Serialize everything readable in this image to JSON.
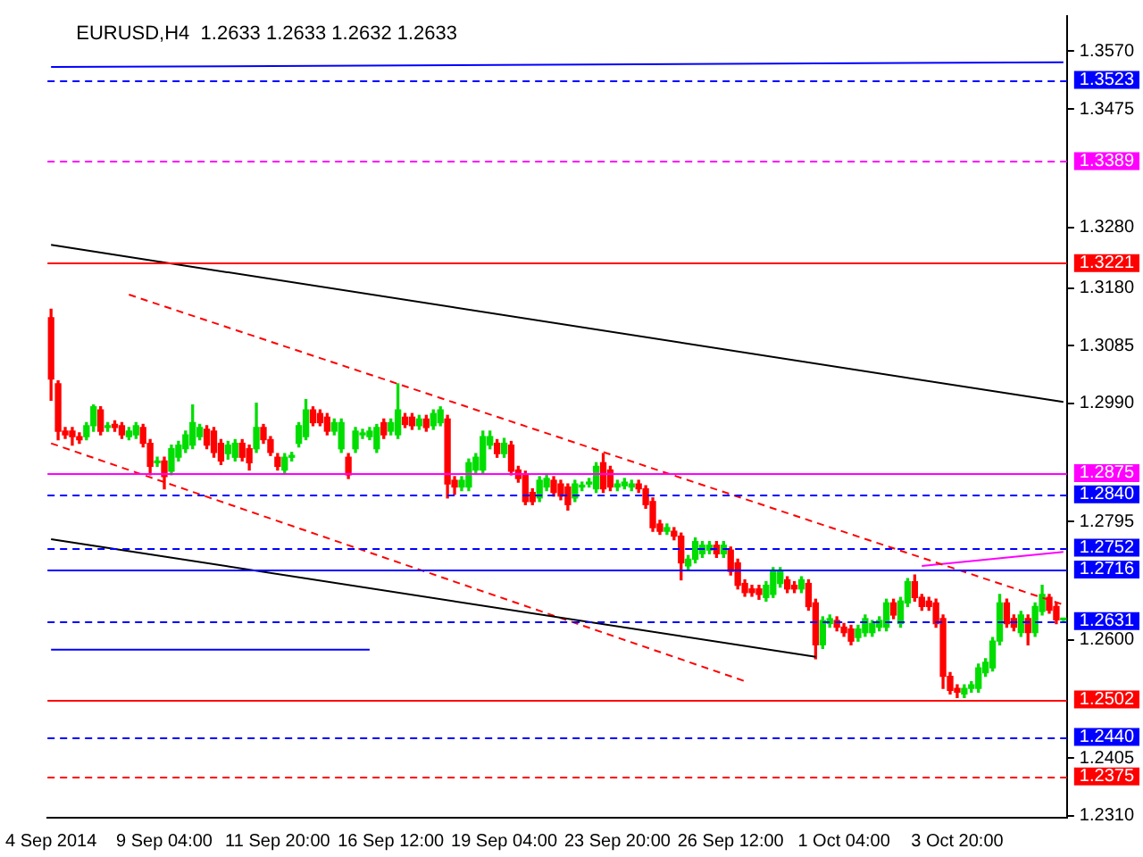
{
  "chart_data": {
    "type": "candlestick",
    "title": "EURUSD,H4  1.2633 1.2633 1.2632 1.2633",
    "categories": [
      "4 Sep 2014",
      null,
      null,
      null,
      null,
      null,
      null,
      null,
      null,
      null,
      null,
      null,
      null,
      null,
      null,
      null,
      "9 Sep 04:00",
      null,
      null,
      null,
      null,
      null,
      null,
      null,
      null,
      null,
      null,
      null,
      null,
      null,
      null,
      null,
      "11 Sep 20:00",
      null,
      null,
      null,
      null,
      null,
      null,
      null,
      null,
      null,
      null,
      null,
      null,
      null,
      null,
      null,
      "16 Sep 12:00",
      null,
      null,
      null,
      null,
      null,
      null,
      null,
      null,
      null,
      null,
      null,
      null,
      null,
      null,
      null,
      "19 Sep 04:00",
      null,
      null,
      null,
      null,
      null,
      null,
      null,
      null,
      null,
      null,
      null,
      null,
      null,
      null,
      null,
      "23 Sep 20:00",
      null,
      null,
      null,
      null,
      null,
      null,
      null,
      null,
      null,
      null,
      null,
      null,
      null,
      null,
      null,
      "26 Sep 12:00",
      null,
      null,
      null,
      null,
      null,
      null,
      null,
      null,
      null,
      null,
      null,
      null,
      null,
      null,
      null,
      "1 Oct 04:00",
      null,
      null,
      null,
      null,
      null,
      null,
      null,
      null,
      null,
      null,
      null,
      null,
      null,
      null,
      null,
      "3 Oct 20:00",
      null,
      null,
      null,
      null,
      null,
      null,
      null,
      null,
      null,
      null,
      null,
      null,
      null,
      null,
      null
    ],
    "ohlc": [
      [
        1.3131,
        1.3145,
        1.2995,
        1.303
      ],
      [
        1.3022,
        1.3027,
        1.293,
        1.2944
      ],
      [
        1.2944,
        1.295,
        1.2932,
        1.2938
      ],
      [
        1.2944,
        1.295,
        1.2921,
        1.2935
      ],
      [
        1.2935,
        1.2941,
        1.2924,
        1.293
      ],
      [
        1.2935,
        1.2958,
        1.293,
        1.2953
      ],
      [
        1.2953,
        1.2987,
        1.2944,
        1.2984
      ],
      [
        1.2979,
        1.2984,
        1.2938,
        1.2944
      ],
      [
        1.295,
        1.2958,
        1.2944,
        1.2953
      ],
      [
        1.2955,
        1.2961,
        1.2944,
        1.295
      ],
      [
        1.2953,
        1.2958,
        1.2932,
        1.2938
      ],
      [
        1.2935,
        1.295,
        1.293,
        1.2944
      ],
      [
        1.2938,
        1.2958,
        1.2932,
        1.2953
      ],
      [
        1.295,
        1.2955,
        1.2918,
        1.2924
      ],
      [
        1.2924,
        1.293,
        1.2872,
        1.2886
      ],
      [
        1.2892,
        1.2901,
        1.2886,
        1.2895
      ],
      [
        1.2895,
        1.2901,
        1.2849,
        1.2869
      ],
      [
        1.2878,
        1.2921,
        1.2872,
        1.2915
      ],
      [
        1.2901,
        1.2927,
        1.2895,
        1.2921
      ],
      [
        1.2915,
        1.2944,
        1.2909,
        1.2938
      ],
      [
        1.2921,
        1.2987,
        1.2915,
        1.2958
      ],
      [
        1.2935,
        1.2955,
        1.293,
        1.295
      ],
      [
        1.2947,
        1.2953,
        1.2915,
        1.2921
      ],
      [
        1.2944,
        1.295,
        1.2901,
        1.2909
      ],
      [
        1.2924,
        1.293,
        1.2889,
        1.2895
      ],
      [
        1.2907,
        1.2927,
        1.2898,
        1.2921
      ],
      [
        1.2901,
        1.293,
        1.2895,
        1.2924
      ],
      [
        1.2924,
        1.293,
        1.2895,
        1.2901
      ],
      [
        1.2915,
        1.2921,
        1.288,
        1.2892
      ],
      [
        1.2915,
        1.299,
        1.2909,
        1.295
      ],
      [
        1.295,
        1.2955,
        1.2924,
        1.293
      ],
      [
        1.293,
        1.2935,
        1.2904,
        1.2909
      ],
      [
        1.2901,
        1.2907,
        1.288,
        1.2886
      ],
      [
        1.288,
        1.2907,
        1.2875,
        1.2901
      ],
      [
        1.2901,
        1.2909,
        1.2895,
        1.2904
      ],
      [
        1.2924,
        1.2958,
        1.2918,
        1.2953
      ],
      [
        1.2935,
        1.2996,
        1.293,
        1.2979
      ],
      [
        1.2979,
        1.2984,
        1.2953,
        1.2958
      ],
      [
        1.2973,
        1.2979,
        1.2953,
        1.2958
      ],
      [
        1.2967,
        1.2973,
        1.2938,
        1.2944
      ],
      [
        1.2944,
        1.2964,
        1.2938,
        1.2958
      ],
      [
        1.2915,
        1.2964,
        1.2909,
        1.2958
      ],
      [
        1.2901,
        1.2907,
        1.2866,
        1.2872
      ],
      [
        1.2915,
        1.295,
        1.2909,
        1.2944
      ],
      [
        1.2938,
        1.2947,
        1.2932,
        1.2941
      ],
      [
        1.2935,
        1.295,
        1.293,
        1.2944
      ],
      [
        1.2915,
        1.2955,
        1.2909,
        1.295
      ],
      [
        1.2958,
        1.2964,
        1.2932,
        1.2938
      ],
      [
        1.2944,
        1.2964,
        1.2938,
        1.2958
      ],
      [
        1.2938,
        1.3022,
        1.2932,
        1.2979
      ],
      [
        1.2967,
        1.2973,
        1.295,
        1.2955
      ],
      [
        1.2967,
        1.2973,
        1.2947,
        1.2953
      ],
      [
        1.2953,
        1.297,
        1.2947,
        1.2964
      ],
      [
        1.2964,
        1.297,
        1.2944,
        1.295
      ],
      [
        1.2953,
        1.2979,
        1.2947,
        1.2973
      ],
      [
        1.2958,
        1.2984,
        1.2953,
        1.2979
      ],
      [
        1.2964,
        1.297,
        1.2834,
        1.2857
      ],
      [
        1.2863,
        1.2869,
        1.284,
        1.2852
      ],
      [
        1.2852,
        1.2869,
        1.2846,
        1.2863
      ],
      [
        1.2852,
        1.2898,
        1.2846,
        1.2892
      ],
      [
        1.288,
        1.2907,
        1.2875,
        1.2901
      ],
      [
        1.288,
        1.2944,
        1.2875,
        1.2935
      ],
      [
        1.2921,
        1.2944,
        1.2915,
        1.2935
      ],
      [
        1.2924,
        1.293,
        1.2901,
        1.2907
      ],
      [
        1.2907,
        1.2932,
        1.2901,
        1.2924
      ],
      [
        1.2921,
        1.2927,
        1.2872,
        1.2878
      ],
      [
        1.288,
        1.2886,
        1.286,
        1.2866
      ],
      [
        1.2872,
        1.2878,
        1.2823,
        1.2828
      ],
      [
        1.2843,
        1.2849,
        1.2823,
        1.2828
      ],
      [
        1.2834,
        1.2869,
        1.2828,
        1.2863
      ],
      [
        1.2852,
        1.2872,
        1.2846,
        1.2866
      ],
      [
        1.2863,
        1.2869,
        1.2837,
        1.2843
      ],
      [
        1.2857,
        1.2863,
        1.2831,
        1.2837
      ],
      [
        1.2852,
        1.2857,
        1.2814,
        1.2823
      ],
      [
        1.2834,
        1.2863,
        1.2828,
        1.2857
      ],
      [
        1.2852,
        1.286,
        1.2846,
        1.2854
      ],
      [
        1.2857,
        1.2866,
        1.2852,
        1.286
      ],
      [
        1.2849,
        1.2892,
        1.2843,
        1.2886
      ],
      [
        1.2892,
        1.2907,
        1.2843,
        1.2849
      ],
      [
        1.288,
        1.2886,
        1.2846,
        1.2852
      ],
      [
        1.2852,
        1.2863,
        1.2846,
        1.2857
      ],
      [
        1.2854,
        1.2866,
        1.2849,
        1.286
      ],
      [
        1.2852,
        1.2863,
        1.2846,
        1.2857
      ],
      [
        1.2857,
        1.2863,
        1.2843,
        1.2849
      ],
      [
        1.2849,
        1.2854,
        1.2817,
        1.2823
      ],
      [
        1.2828,
        1.2834,
        1.2779,
        1.2785
      ],
      [
        1.2791,
        1.2797,
        1.2774,
        1.2779
      ],
      [
        1.2779,
        1.2791,
        1.2774,
        1.2785
      ],
      [
        1.2779,
        1.2785,
        1.2765,
        1.2771
      ],
      [
        1.2771,
        1.2776,
        1.2699,
        1.2727
      ],
      [
        1.2722,
        1.2739,
        1.2716,
        1.2733
      ],
      [
        1.2733,
        1.2768,
        1.2727,
        1.2762
      ],
      [
        1.2742,
        1.2762,
        1.2736,
        1.2756
      ],
      [
        1.2748,
        1.2762,
        1.2742,
        1.2756
      ],
      [
        1.2756,
        1.2762,
        1.2736,
        1.2742
      ],
      [
        1.2742,
        1.2762,
        1.2736,
        1.2756
      ],
      [
        1.2748,
        1.2753,
        1.2707,
        1.2713
      ],
      [
        1.2727,
        1.2733,
        1.2684,
        1.269
      ],
      [
        1.2693,
        1.2699,
        1.2672,
        1.2678
      ],
      [
        1.2684,
        1.269,
        1.2672,
        1.2678
      ],
      [
        1.2684,
        1.269,
        1.2667,
        1.2675
      ],
      [
        1.267,
        1.2696,
        1.2664,
        1.269
      ],
      [
        1.2675,
        1.2719,
        1.267,
        1.2713
      ],
      [
        1.2693,
        1.2719,
        1.2687,
        1.2713
      ],
      [
        1.2699,
        1.2704,
        1.2678,
        1.2684
      ],
      [
        1.269,
        1.2696,
        1.2678,
        1.2684
      ],
      [
        1.2684,
        1.2704,
        1.2678,
        1.2699
      ],
      [
        1.2693,
        1.2699,
        1.2649,
        1.2655
      ],
      [
        1.2661,
        1.2667,
        1.2569,
        1.2592
      ],
      [
        1.2592,
        1.2638,
        1.2586,
        1.2632
      ],
      [
        1.2627,
        1.2641,
        1.2621,
        1.2635
      ],
      [
        1.2632,
        1.2638,
        1.2615,
        1.2621
      ],
      [
        1.2621,
        1.2627,
        1.2606,
        1.2612
      ],
      [
        1.2618,
        1.2624,
        1.2592,
        1.2598
      ],
      [
        1.2604,
        1.2624,
        1.2598,
        1.2618
      ],
      [
        1.2612,
        1.2641,
        1.2606,
        1.2635
      ],
      [
        1.2612,
        1.2632,
        1.2606,
        1.2627
      ],
      [
        1.2621,
        1.2638,
        1.2615,
        1.2632
      ],
      [
        1.2621,
        1.2667,
        1.2615,
        1.2661
      ],
      [
        1.2661,
        1.2667,
        1.2635,
        1.2641
      ],
      [
        1.2627,
        1.267,
        1.2621,
        1.2664
      ],
      [
        1.2661,
        1.2701,
        1.2655,
        1.2696
      ],
      [
        1.2696,
        1.2707,
        1.2664,
        1.267
      ],
      [
        1.267,
        1.2675,
        1.2649,
        1.2655
      ],
      [
        1.2664,
        1.267,
        1.2649,
        1.2655
      ],
      [
        1.2661,
        1.2667,
        1.2621,
        1.2627
      ],
      [
        1.2635,
        1.2641,
        1.252,
        1.254
      ],
      [
        1.254,
        1.2546,
        1.2511,
        1.2517
      ],
      [
        1.252,
        1.2526,
        1.2505,
        1.2514
      ],
      [
        1.2511,
        1.2526,
        1.2505,
        1.252
      ],
      [
        1.252,
        1.2531,
        1.2514,
        1.2526
      ],
      [
        1.252,
        1.256,
        1.2514,
        1.2554
      ],
      [
        1.2546,
        1.2569,
        1.254,
        1.2563
      ],
      [
        1.2554,
        1.2604,
        1.2549,
        1.2598
      ],
      [
        1.2598,
        1.2675,
        1.2592,
        1.2661
      ],
      [
        1.2661,
        1.2667,
        1.2621,
        1.2627
      ],
      [
        1.2635,
        1.2641,
        1.2615,
        1.2621
      ],
      [
        1.2612,
        1.2647,
        1.2606,
        1.2641
      ],
      [
        1.2635,
        1.2641,
        1.2592,
        1.2612
      ],
      [
        1.2612,
        1.2661,
        1.2606,
        1.2655
      ],
      [
        1.2647,
        1.269,
        1.2641,
        1.2675
      ],
      [
        1.267,
        1.2675,
        1.2644,
        1.2649
      ],
      [
        1.2655,
        1.2661,
        1.2627,
        1.2633
      ],
      [
        1.2633,
        1.2633,
        1.2632,
        1.2633
      ]
    ],
    "series": [
      {
        "type": "line",
        "color": "#000000",
        "line_style": "solid",
        "values": [
          1.3251,
          null,
          null,
          null,
          null,
          null,
          null,
          null,
          null,
          null,
          null,
          null,
          null,
          null,
          null,
          null,
          null,
          null,
          null,
          null,
          null,
          null,
          null,
          null,
          null,
          null,
          null,
          null,
          null,
          null,
          null,
          null,
          null,
          null,
          null,
          null,
          null,
          null,
          null,
          null,
          null,
          null,
          null,
          null,
          null,
          null,
          null,
          null,
          null,
          null,
          null,
          null,
          null,
          null,
          null,
          null,
          null,
          null,
          null,
          null,
          null,
          null,
          null,
          null,
          null,
          null,
          null,
          null,
          null,
          null,
          null,
          null,
          null,
          null,
          null,
          null,
          null,
          null,
          null,
          null,
          null,
          null,
          null,
          null,
          null,
          null,
          null,
          null,
          null,
          null,
          null,
          null,
          null,
          null,
          null,
          null,
          null,
          null,
          null,
          null,
          null,
          null,
          null,
          null,
          null,
          null,
          null,
          null,
          null,
          null,
          null,
          null,
          null,
          null,
          null,
          null,
          null,
          null,
          null,
          null,
          null,
          null,
          null,
          null,
          null,
          null,
          null,
          null,
          null,
          null,
          null,
          null,
          null,
          null,
          null,
          null,
          null,
          null,
          null,
          null,
          null,
          null,
          null,
          1.2992
        ]
      },
      {
        "type": "line",
        "color": "#000000",
        "line_style": "solid",
        "values": [
          1.2766,
          null,
          null,
          null,
          null,
          null,
          null,
          null,
          null,
          null,
          null,
          null,
          null,
          null,
          null,
          null,
          null,
          null,
          null,
          null,
          null,
          null,
          null,
          null,
          null,
          null,
          null,
          null,
          null,
          null,
          null,
          null,
          null,
          null,
          null,
          null,
          null,
          null,
          null,
          null,
          null,
          null,
          null,
          null,
          null,
          null,
          null,
          null,
          null,
          null,
          null,
          null,
          null,
          null,
          null,
          null,
          null,
          null,
          null,
          null,
          null,
          null,
          null,
          null,
          null,
          null,
          null,
          null,
          null,
          null,
          null,
          null,
          null,
          null,
          null,
          null,
          null,
          null,
          null,
          null,
          null,
          null,
          null,
          null,
          null,
          null,
          null,
          null,
          null,
          null,
          null,
          null,
          null,
          null,
          null,
          null,
          null,
          null,
          null,
          null,
          null,
          null,
          null,
          null,
          null,
          null,
          null,
          null,
          1.2572,
          null,
          null,
          null,
          null,
          null,
          null,
          null,
          null,
          null,
          null,
          null,
          null,
          null,
          null,
          null,
          null,
          null,
          null,
          null,
          null,
          null,
          null,
          null,
          null,
          null,
          null,
          null,
          null,
          null,
          null,
          null,
          null,
          null,
          null,
          null
        ]
      },
      {
        "type": "line",
        "color": "#ff0000",
        "line_style": "dashed",
        "values": [
          null,
          null,
          null,
          null,
          null,
          null,
          null,
          null,
          null,
          null,
          null,
          1.3169,
          null,
          null,
          null,
          null,
          null,
          null,
          null,
          null,
          null,
          null,
          null,
          null,
          null,
          null,
          null,
          null,
          null,
          null,
          null,
          null,
          null,
          null,
          null,
          null,
          null,
          null,
          null,
          null,
          null,
          null,
          null,
          null,
          null,
          null,
          null,
          null,
          null,
          null,
          null,
          null,
          null,
          null,
          null,
          null,
          null,
          null,
          null,
          null,
          null,
          null,
          null,
          null,
          null,
          null,
          null,
          null,
          null,
          null,
          null,
          null,
          null,
          null,
          null,
          null,
          null,
          null,
          null,
          null,
          null,
          null,
          null,
          null,
          null,
          null,
          null,
          null,
          null,
          null,
          null,
          null,
          null,
          null,
          null,
          null,
          null,
          null,
          null,
          null,
          null,
          null,
          null,
          null,
          null,
          null,
          null,
          null,
          null,
          null,
          null,
          null,
          null,
          null,
          null,
          null,
          null,
          null,
          null,
          null,
          null,
          null,
          null,
          null,
          null,
          null,
          null,
          null,
          null,
          null,
          null,
          null,
          null,
          null,
          null,
          null,
          null,
          null,
          null,
          null,
          null,
          null,
          null,
          1.2658
        ]
      },
      {
        "type": "line",
        "color": "#ff0000",
        "line_style": "dashed",
        "values": [
          1.2924,
          null,
          null,
          null,
          null,
          null,
          null,
          null,
          null,
          null,
          null,
          null,
          null,
          null,
          null,
          null,
          null,
          null,
          null,
          null,
          null,
          null,
          null,
          null,
          null,
          null,
          null,
          null,
          null,
          null,
          null,
          null,
          null,
          null,
          null,
          null,
          null,
          null,
          null,
          null,
          null,
          null,
          null,
          null,
          null,
          null,
          null,
          null,
          null,
          null,
          null,
          null,
          null,
          null,
          null,
          null,
          null,
          null,
          null,
          null,
          null,
          null,
          null,
          null,
          null,
          null,
          null,
          null,
          null,
          null,
          null,
          null,
          null,
          null,
          null,
          null,
          null,
          null,
          null,
          null,
          null,
          null,
          null,
          null,
          null,
          null,
          null,
          null,
          null,
          null,
          null,
          null,
          null,
          null,
          null,
          null,
          null,
          null,
          1.2532,
          null,
          null,
          null,
          null,
          null,
          null,
          null,
          null,
          null,
          null,
          null,
          null,
          null,
          null,
          null,
          null,
          null,
          null,
          null,
          null,
          null,
          null,
          null,
          null,
          null,
          null,
          null,
          null,
          null,
          null,
          null,
          null,
          null,
          null,
          null,
          null,
          null,
          null,
          null,
          null,
          null,
          null,
          null,
          null,
          null
        ]
      },
      {
        "type": "line",
        "color": "#0000ff",
        "line_style": "solid",
        "values": [
          1.2584,
          null,
          null,
          null,
          null,
          null,
          null,
          null,
          null,
          null,
          null,
          null,
          null,
          null,
          null,
          null,
          null,
          null,
          null,
          null,
          null,
          null,
          null,
          null,
          null,
          null,
          null,
          null,
          null,
          null,
          null,
          null,
          null,
          null,
          null,
          null,
          null,
          null,
          null,
          null,
          null,
          null,
          null,
          null,
          null,
          1.2584,
          null,
          null,
          null,
          null,
          null,
          null,
          null,
          null,
          null,
          null,
          null,
          null,
          null,
          null,
          null,
          null,
          null,
          null,
          null,
          null,
          null,
          null,
          null,
          null,
          null,
          null,
          null,
          null,
          null,
          null,
          null,
          null,
          null,
          null,
          null,
          null,
          null,
          null,
          null,
          null,
          null,
          null,
          null,
          null,
          null,
          null,
          null,
          null,
          null,
          null,
          null,
          null,
          null,
          null,
          null,
          null,
          null,
          null,
          null,
          null,
          null,
          null,
          null,
          null,
          null,
          null,
          null,
          null,
          null,
          null,
          null,
          null,
          null,
          null,
          null,
          null,
          null,
          null,
          null,
          null,
          null,
          null,
          null,
          null,
          null,
          null,
          null,
          null,
          null,
          null,
          null,
          null,
          null,
          null,
          null,
          null,
          null,
          null
        ]
      },
      {
        "type": "line",
        "color": "#ff00ff",
        "line_style": "solid",
        "values": [
          null,
          null,
          null,
          null,
          null,
          null,
          null,
          null,
          null,
          null,
          null,
          null,
          null,
          null,
          null,
          null,
          null,
          null,
          null,
          null,
          null,
          null,
          null,
          null,
          null,
          null,
          null,
          null,
          null,
          null,
          null,
          null,
          null,
          null,
          null,
          null,
          null,
          null,
          null,
          null,
          null,
          null,
          null,
          null,
          null,
          null,
          null,
          null,
          null,
          null,
          null,
          null,
          null,
          null,
          null,
          null,
          null,
          null,
          null,
          null,
          null,
          null,
          null,
          null,
          null,
          null,
          null,
          null,
          null,
          null,
          null,
          null,
          null,
          null,
          null,
          null,
          null,
          null,
          null,
          null,
          null,
          null,
          null,
          null,
          null,
          null,
          null,
          null,
          null,
          null,
          null,
          null,
          null,
          null,
          null,
          null,
          null,
          null,
          null,
          null,
          null,
          null,
          null,
          null,
          null,
          null,
          null,
          null,
          null,
          null,
          null,
          null,
          null,
          null,
          null,
          null,
          null,
          null,
          null,
          null,
          null,
          null,
          null,
          1.2722,
          null,
          null,
          null,
          null,
          null,
          null,
          null,
          null,
          null,
          null,
          null,
          null,
          null,
          null,
          null,
          null,
          null,
          null,
          null,
          1.2745
        ]
      },
      {
        "type": "line",
        "color": "#0000ff",
        "line_style": "solid",
        "values": [
          1.3544,
          null,
          null,
          null,
          null,
          null,
          null,
          null,
          null,
          null,
          null,
          null,
          null,
          null,
          null,
          null,
          null,
          null,
          null,
          null,
          null,
          null,
          null,
          null,
          null,
          null,
          null,
          null,
          null,
          null,
          null,
          null,
          null,
          null,
          null,
          null,
          null,
          null,
          null,
          null,
          null,
          null,
          null,
          null,
          null,
          null,
          null,
          null,
          null,
          null,
          null,
          null,
          null,
          null,
          null,
          null,
          null,
          null,
          null,
          null,
          null,
          null,
          null,
          null,
          null,
          null,
          null,
          null,
          null,
          null,
          null,
          null,
          null,
          null,
          null,
          null,
          null,
          null,
          null,
          null,
          null,
          null,
          null,
          null,
          null,
          null,
          null,
          null,
          null,
          null,
          null,
          null,
          null,
          null,
          null,
          null,
          null,
          null,
          null,
          null,
          null,
          null,
          null,
          null,
          null,
          null,
          null,
          null,
          null,
          null,
          null,
          null,
          null,
          null,
          null,
          null,
          null,
          null,
          null,
          null,
          null,
          null,
          null,
          null,
          null,
          null,
          null,
          null,
          null,
          null,
          null,
          null,
          null,
          null,
          null,
          null,
          null,
          null,
          null,
          null,
          null,
          null,
          null,
          1.3552
        ]
      }
    ],
    "ylim": [
      1.2307,
      1.3628
    ],
    "yticks": [
      {
        "value": 1.357,
        "label": "1.3570"
      },
      1.3475,
      {
        "value": 1.328,
        "label": "1.3280"
      },
      {
        "value": 1.318,
        "label": "1.3180"
      },
      1.3085,
      {
        "value": 1.299,
        "label": "1.2990"
      },
      1.2795,
      {
        "value": 1.26,
        "label": "1.2600"
      },
      1.2405,
      {
        "value": 1.231,
        "label": "1.2310"
      }
    ],
    "ref_lines": [
      {
        "axis": "y",
        "value": 1.3523,
        "label": "1.3523",
        "color": "#0000ff",
        "line_style": "dashed"
      },
      {
        "axis": "y",
        "value": 1.3389,
        "label": "1.3389",
        "color": "#ff00ff",
        "line_style": "dashed"
      },
      {
        "axis": "y",
        "value": 1.3221,
        "label": "1.3221",
        "color": "#ff0000",
        "line_style": "solid"
      },
      {
        "axis": "y",
        "value": 1.2875,
        "label": "1.2875",
        "color": "#ff00ff",
        "line_style": "solid"
      },
      {
        "axis": "y",
        "value": 1.284,
        "label": "1.2840",
        "color": "#0000ff",
        "line_style": "dashed"
      },
      {
        "axis": "y",
        "value": 1.2752,
        "label": "1.2752",
        "color": "#0000ff",
        "line_style": "dashed"
      },
      {
        "axis": "y",
        "value": 1.2716,
        "label": "1.2716",
        "color": "#0000ff",
        "line_style": "solid"
      },
      {
        "axis": "y",
        "value": 1.2631,
        "label": "1.2631",
        "color": "#0000ff",
        "line_style": "dashed"
      },
      {
        "axis": "y",
        "value": 1.2502,
        "label": "1.2502",
        "color": "#ff0000",
        "line_style": "solid"
      },
      {
        "axis": "y",
        "value": 1.244,
        "label": "1.2440",
        "color": "#0000ff",
        "line_style": "dashed"
      },
      {
        "axis": "y",
        "value": 1.2375,
        "label": "1.2375",
        "color": "#ff0000",
        "line_style": "dashed"
      }
    ],
    "grid": false,
    "legend": false
  }
}
